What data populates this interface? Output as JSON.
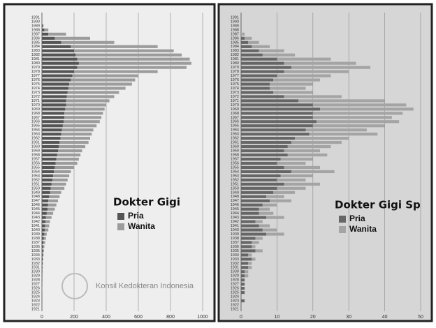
{
  "chart_data": [
    {
      "type": "bar",
      "orientation": "horizontal",
      "stacked": true,
      "title": "Dokter Gigi",
      "watermark": "Konsil Kedokteran Indonesia",
      "categories": [
        "1991",
        "1990",
        "1989",
        "1988",
        "1987",
        "1986",
        "1985",
        "1984",
        "1983",
        "1982",
        "1981",
        "1980",
        "1979",
        "1978",
        "1977",
        "1976",
        "1975",
        "1974",
        "1973",
        "1972",
        "1971",
        "1970",
        "1969",
        "1968",
        "1967",
        "1966",
        "1965",
        "1964",
        "1963",
        "1962",
        "1961",
        "1960",
        "1959",
        "1958",
        "1957",
        "1956",
        "1955",
        "1954",
        "1953",
        "1952",
        "1951",
        "1950",
        "1949",
        "1948",
        "1947",
        "1946",
        "1945",
        "1944",
        "1943",
        "1942",
        "1941",
        "1940",
        "1939",
        "1938",
        "1937",
        "1936",
        "1935",
        "1934",
        "1933",
        "1932",
        "1931",
        "1930",
        "1929",
        "1928",
        "1927",
        "1926",
        "1925",
        "1924",
        "1923",
        "1922",
        "1921"
      ],
      "series": [
        {
          "name": "Pria",
          "color": "#555555",
          "values": [
            0,
            0,
            5,
            15,
            40,
            80,
            120,
            180,
            200,
            210,
            220,
            230,
            220,
            200,
            190,
            180,
            170,
            165,
            160,
            155,
            150,
            150,
            145,
            140,
            140,
            135,
            130,
            125,
            120,
            115,
            110,
            105,
            100,
            95,
            90,
            85,
            80,
            75,
            70,
            65,
            60,
            55,
            50,
            45,
            40,
            38,
            35,
            30,
            25,
            22,
            20,
            18,
            15,
            12,
            10,
            8,
            7,
            6,
            5,
            4,
            3,
            3,
            2,
            2,
            2,
            1,
            1,
            1,
            1,
            0,
            0
          ]
        },
        {
          "name": "Wanita",
          "color": "#9c9c9c",
          "values": [
            0,
            0,
            5,
            25,
            110,
            220,
            330,
            540,
            620,
            660,
            700,
            700,
            680,
            520,
            410,
            400,
            390,
            355,
            320,
            295,
            270,
            250,
            245,
            240,
            230,
            225,
            210,
            195,
            190,
            185,
            180,
            165,
            150,
            145,
            140,
            135,
            120,
            105,
            100,
            95,
            90,
            85,
            70,
            65,
            60,
            52,
            45,
            40,
            35,
            28,
            25,
            22,
            15,
            13,
            10,
            7,
            5,
            4,
            3,
            2,
            2,
            1,
            1,
            1,
            0,
            1,
            0,
            0,
            0,
            0,
            0
          ]
        }
      ],
      "xlim": [
        0,
        1000
      ],
      "xticks": [
        0,
        200,
        400,
        600,
        800,
        1000
      ],
      "grid": true
    },
    {
      "type": "bar",
      "orientation": "horizontal",
      "stacked": true,
      "title": "Dokter Gigi Sp",
      "categories": [
        "1991",
        "1990",
        "1989",
        "1988",
        "1987",
        "1986",
        "1985",
        "1984",
        "1983",
        "1982",
        "1981",
        "1980",
        "1979",
        "1978",
        "1977",
        "1976",
        "1975",
        "1974",
        "1973",
        "1972",
        "1971",
        "1970",
        "1969",
        "1968",
        "1967",
        "1966",
        "1965",
        "1964",
        "1963",
        "1962",
        "1961",
        "1960",
        "1959",
        "1958",
        "1957",
        "1956",
        "1955",
        "1954",
        "1953",
        "1952",
        "1951",
        "1950",
        "1949",
        "1948",
        "1947",
        "1946",
        "1945",
        "1944",
        "1943",
        "1942",
        "1941",
        "1940",
        "1939",
        "1938",
        "1937",
        "1936",
        "1935",
        "1934",
        "1933",
        "1932",
        "1931",
        "1930",
        "1929",
        "1928",
        "1927",
        "1926",
        "1925",
        "1924",
        "1923",
        "1922",
        "1921"
      ],
      "series": [
        {
          "name": "Pria",
          "color": "#666666",
          "values": [
            0,
            0,
            0,
            0,
            0,
            1,
            2,
            3,
            5,
            6,
            10,
            12,
            14,
            12,
            10,
            9,
            8,
            8,
            9,
            12,
            16,
            20,
            22,
            20,
            20,
            21,
            20,
            18,
            19,
            15,
            14,
            13,
            12,
            13,
            11,
            10,
            12,
            14,
            11,
            10,
            12,
            10,
            9,
            7,
            8,
            6,
            5,
            5,
            7,
            4,
            5,
            6,
            7,
            4,
            3,
            3,
            4,
            2,
            3,
            2,
            2,
            1,
            1,
            1,
            1,
            1,
            1,
            0,
            1,
            0,
            0
          ]
        },
        {
          "name": "Wanita",
          "color": "#a4a4a4",
          "values": [
            0,
            0,
            0,
            0,
            1,
            2,
            3,
            5,
            7,
            9,
            15,
            20,
            22,
            18,
            15,
            13,
            12,
            10,
            11,
            16,
            24,
            26,
            26,
            25,
            22,
            23,
            20,
            17,
            19,
            15,
            14,
            12,
            10,
            11,
            9,
            8,
            10,
            12,
            9,
            8,
            10,
            8,
            6,
            5,
            6,
            4,
            3,
            4,
            5,
            2,
            3,
            4,
            5,
            2,
            2,
            1,
            2,
            1,
            1,
            1,
            1,
            1,
            1,
            0,
            0,
            0,
            0,
            0,
            0,
            0,
            0
          ]
        }
      ],
      "xlim": [
        0,
        50
      ],
      "xticks": [
        0,
        10,
        20,
        30,
        40,
        50
      ],
      "grid": true
    }
  ]
}
